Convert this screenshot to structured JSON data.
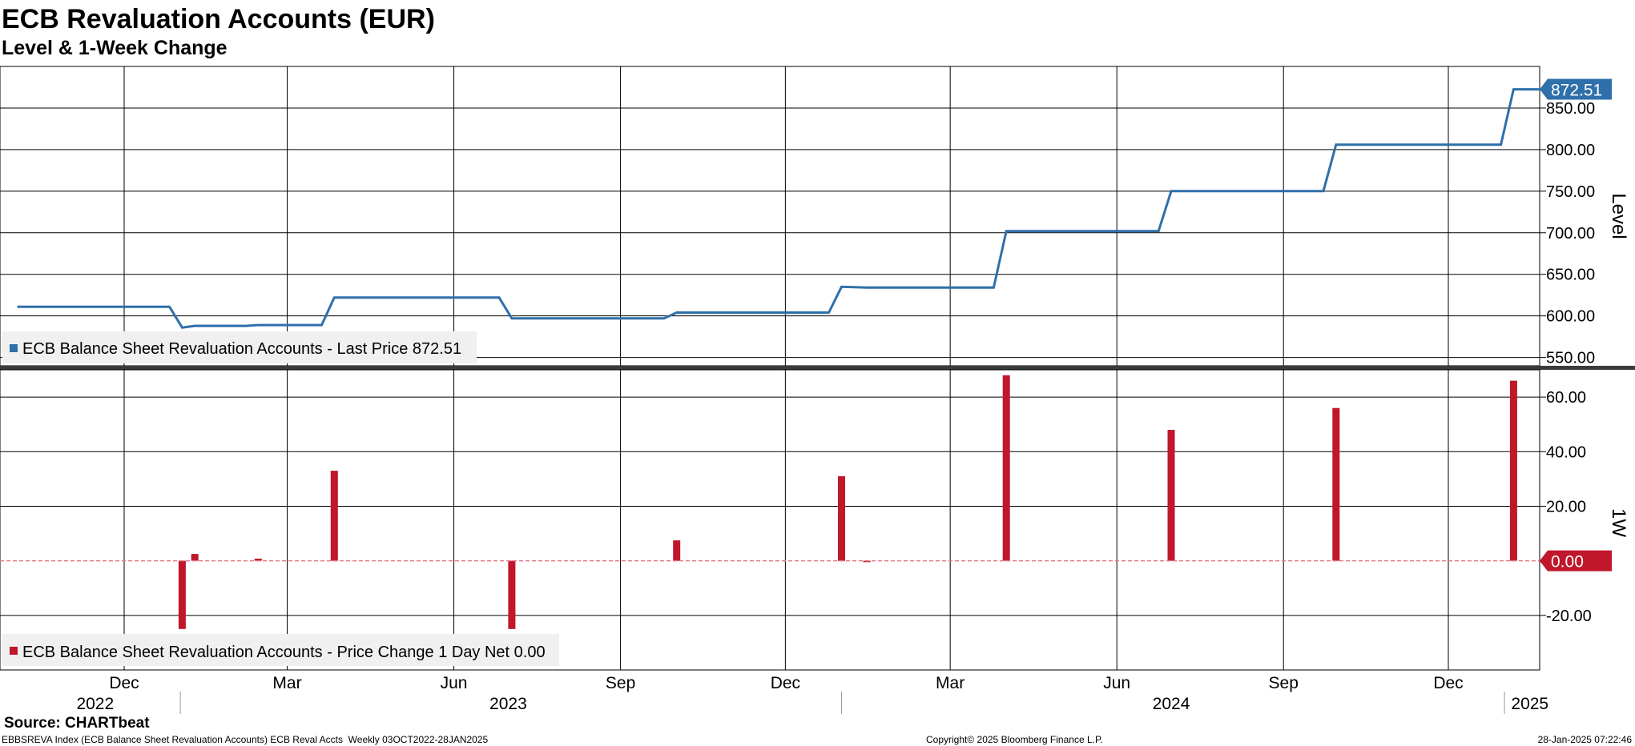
{
  "header": {
    "title": "ECB Revaluation Accounts (EUR)",
    "subtitle": "Level & 1-Week Change"
  },
  "footer": {
    "source": "Source: CHARTbeat",
    "left_info": "EBBSREVA Index (ECB Balance Sheet Revaluation Accounts) ECB Reval Accts  Weekly 03OCT2022-28JAN2025",
    "copyright": "Copyright© 2025 Bloomberg Finance L.P.",
    "timestamp": "28-Jan-2025 07:22:46"
  },
  "colors": {
    "level_line": "#2f6faa",
    "change_bar": "#c0172b",
    "grid": "#000000"
  },
  "x_axis": {
    "month_ticks": [
      {
        "label": "Dec",
        "date": "2022-12-01"
      },
      {
        "label": "Mar",
        "date": "2023-03-01"
      },
      {
        "label": "Jun",
        "date": "2023-06-01"
      },
      {
        "label": "Sep",
        "date": "2023-09-01"
      },
      {
        "label": "Dec",
        "date": "2023-12-01"
      },
      {
        "label": "Mar",
        "date": "2024-03-01"
      },
      {
        "label": "Jun",
        "date": "2024-06-01"
      },
      {
        "label": "Sep",
        "date": "2024-09-01"
      },
      {
        "label": "Dec",
        "date": "2024-12-01"
      }
    ],
    "year_labels": [
      {
        "label": "2022",
        "date": "2022-11-15"
      },
      {
        "label": "2023",
        "date": "2023-07-01"
      },
      {
        "label": "2024",
        "date": "2024-07-01"
      },
      {
        "label": "2025",
        "date": "2025-01-15"
      }
    ],
    "year_separators": [
      "2023-01-01",
      "2024-01-01",
      "2025-01-01"
    ]
  },
  "chart_data": [
    {
      "type": "line",
      "ylabel": "Level",
      "ylim": [
        540,
        900
      ],
      "yticks": [
        550,
        600,
        650,
        700,
        750,
        800,
        850
      ],
      "ytick_labels": [
        "550.00",
        "600.00",
        "650.00",
        "700.00",
        "750.00",
        "800.00",
        "850.00"
      ],
      "grid": true,
      "legend_position": "bottom-left",
      "series": [
        {
          "name": "ECB Balance Sheet Revaluation Accounts - Last Price 872.51",
          "last_value": 872.51,
          "last_value_label": "872.51",
          "points": [
            [
              "2022-10-03",
              611
            ],
            [
              "2022-12-26",
              611
            ],
            [
              "2023-01-02",
              586
            ],
            [
              "2023-01-09",
              588
            ],
            [
              "2023-02-06",
              588
            ],
            [
              "2023-02-13",
              589
            ],
            [
              "2023-03-20",
              589
            ],
            [
              "2023-03-27",
              622
            ],
            [
              "2023-06-26",
              622
            ],
            [
              "2023-07-03",
              597
            ],
            [
              "2023-09-25",
              597
            ],
            [
              "2023-10-02",
              604
            ],
            [
              "2023-12-25",
              604
            ],
            [
              "2024-01-01",
              635
            ],
            [
              "2024-01-15",
              634
            ],
            [
              "2024-03-25",
              634
            ],
            [
              "2024-04-01",
              702
            ],
            [
              "2024-06-24",
              702
            ],
            [
              "2024-07-01",
              750
            ],
            [
              "2024-09-23",
              750
            ],
            [
              "2024-09-30",
              806
            ],
            [
              "2024-12-30",
              806
            ],
            [
              "2025-01-06",
              872.51
            ],
            [
              "2025-01-28",
              872.51
            ]
          ]
        }
      ]
    },
    {
      "type": "bar",
      "ylabel": "1W",
      "ylim": [
        -40,
        70
      ],
      "yticks": [
        -20,
        20,
        40,
        60
      ],
      "ytick_labels": [
        "-20.00",
        "20.00",
        "40.00",
        "60.00"
      ],
      "grid": true,
      "legend_position": "bottom-left",
      "series": [
        {
          "name": "ECB Balance Sheet Revaluation Accounts - Price Change 1 Day Net 0.00",
          "last_value": 0.0,
          "last_value_label": "0.00",
          "points": [
            [
              "2023-01-02",
              -25
            ],
            [
              "2023-01-09",
              2.5
            ],
            [
              "2023-02-13",
              0.8
            ],
            [
              "2023-03-27",
              33
            ],
            [
              "2023-07-03",
              -25
            ],
            [
              "2023-10-02",
              7.5
            ],
            [
              "2024-01-01",
              31
            ],
            [
              "2024-01-15",
              -0.5
            ],
            [
              "2024-04-01",
              68
            ],
            [
              "2024-07-01",
              48
            ],
            [
              "2024-09-30",
              56
            ],
            [
              "2025-01-06",
              66
            ]
          ]
        }
      ]
    }
  ]
}
